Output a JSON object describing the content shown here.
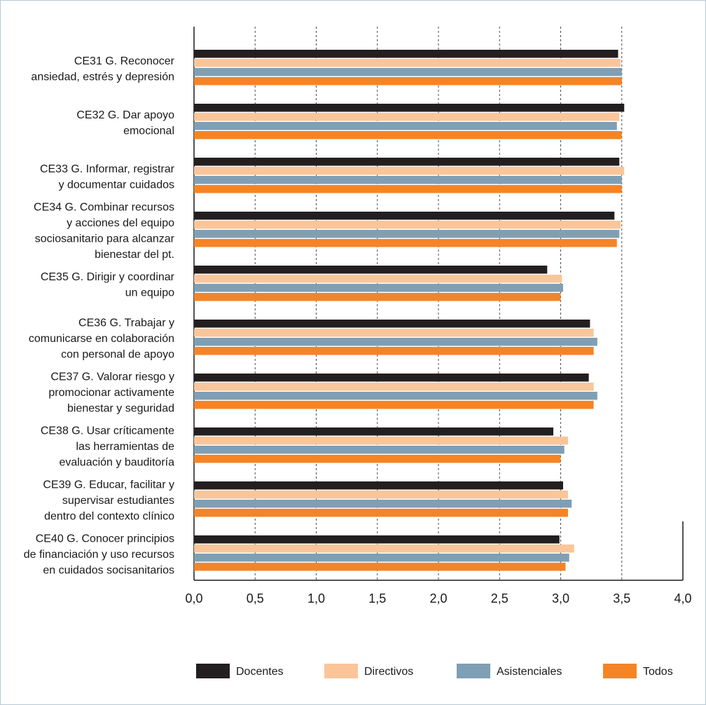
{
  "chart_data": {
    "type": "bar",
    "orientation": "horizontal",
    "xlim": [
      0,
      4
    ],
    "ticks": [
      "0,0",
      "0,5",
      "1,0",
      "1,5",
      "2,0",
      "2,5",
      "3,0",
      "3,5",
      "4,0"
    ],
    "grid": "vertical dashed",
    "legend_position": "bottom",
    "categories": [
      [
        "CE31 G. Reconocer",
        "ansiedad, estrés y depresión"
      ],
      [
        "CE32 G. Dar apoyo",
        "emocional"
      ],
      [
        "CE33 G. Informar, registrar",
        "y documentar cuidados"
      ],
      [
        "CE34 G. Combinar recursos",
        "y acciones del equipo",
        "sociosanitario para alcanzar",
        "bienestar del pt."
      ],
      [
        "CE35 G. Dirigir y coordinar",
        "un equipo"
      ],
      [
        "CE36 G. Trabajar y",
        "comunicarse en colaboración",
        "con personal de apoyo"
      ],
      [
        "CE37 G. Valorar riesgo y",
        "promocionar activamente",
        "bienestar y seguridad"
      ],
      [
        "CE38 G. Usar críticamente",
        "las herramientas de",
        "evaluación y bauditoría"
      ],
      [
        "CE39 G. Educar, facilitar y",
        "supervisar estudiantes",
        "dentro del contexto clínico"
      ],
      [
        "CE40 G. Conocer principios",
        "de financiación y uso recursos",
        "en cuidados socisanitarios"
      ]
    ],
    "series": [
      {
        "name": "Docentes",
        "color": "#231f20",
        "values": [
          3.47,
          3.52,
          3.48,
          3.44,
          2.89,
          3.24,
          3.23,
          2.94,
          3.02,
          2.99
        ]
      },
      {
        "name": "Directivos",
        "color": "#fbc59a",
        "values": [
          3.49,
          3.48,
          3.52,
          3.49,
          3.01,
          3.27,
          3.27,
          3.06,
          3.06,
          3.11
        ]
      },
      {
        "name": "Asistenciales",
        "color": "#7f9fb4",
        "values": [
          3.5,
          3.46,
          3.5,
          3.48,
          3.02,
          3.3,
          3.3,
          3.03,
          3.09,
          3.07
        ]
      },
      {
        "name": "Todos",
        "color": "#f58426",
        "values": [
          3.5,
          3.5,
          3.5,
          3.46,
          3.0,
          3.27,
          3.27,
          3.0,
          3.06,
          3.04
        ]
      }
    ]
  }
}
